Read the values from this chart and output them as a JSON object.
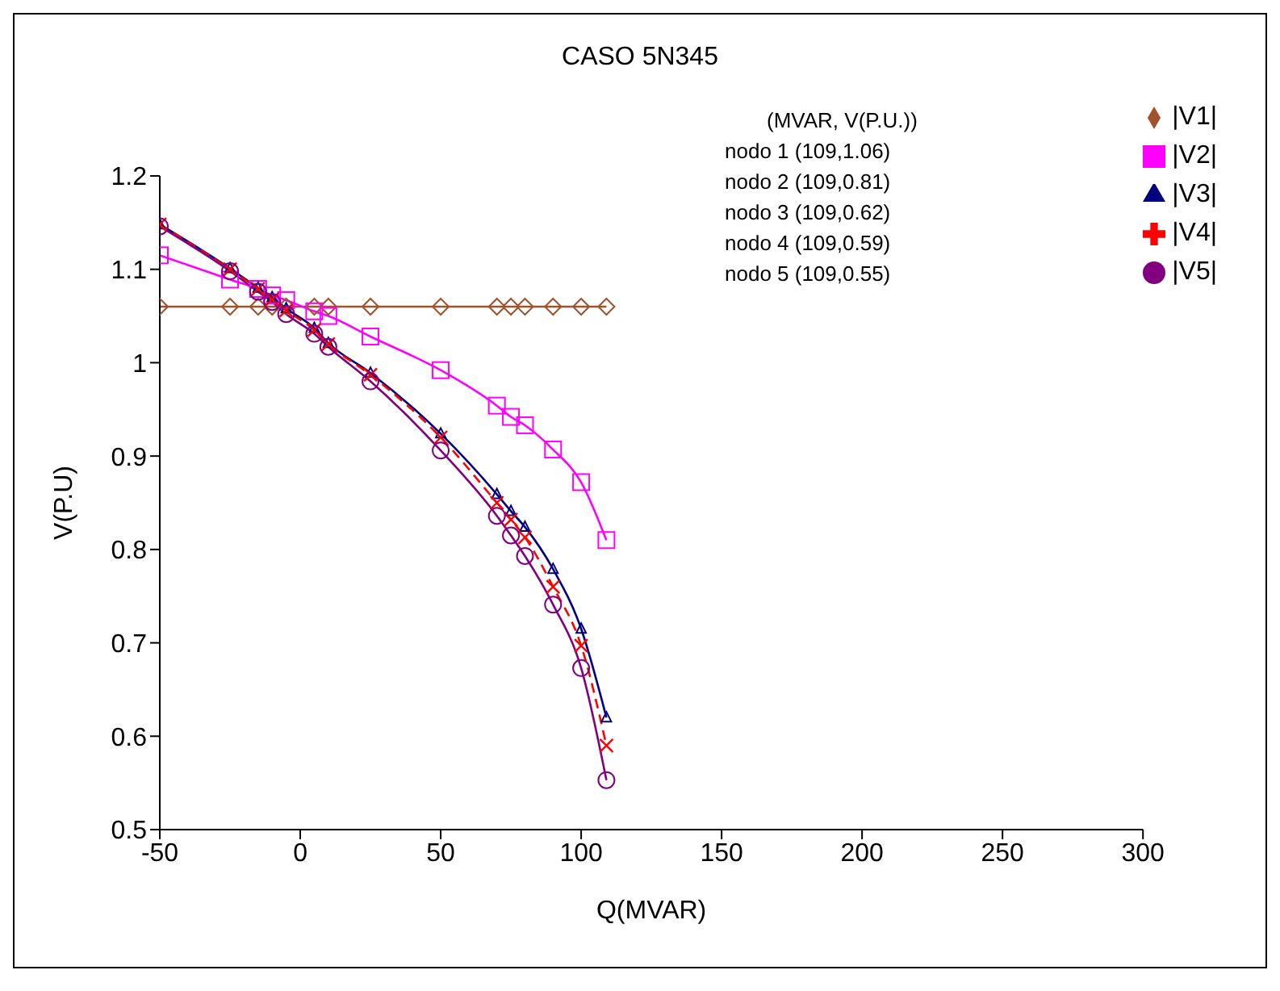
{
  "chart_data": {
    "type": "line",
    "title": "CASO 5N345",
    "xlabel": "Q(MVAR)",
    "ylabel": "V(P.U)",
    "x": [
      -50,
      -25,
      -15,
      -10,
      -5,
      5,
      10,
      25,
      50,
      70,
      75,
      80,
      90,
      100,
      109
    ],
    "xlim": [
      -50,
      300
    ],
    "xticks": [
      -50,
      0,
      50,
      100,
      150,
      200,
      250,
      300
    ],
    "ylim": [
      0.5,
      1.2
    ],
    "yticks": [
      0.5,
      0.6,
      0.7,
      0.8,
      0.9,
      1,
      1.1,
      1.2
    ],
    "grid": false,
    "legend": "top right",
    "annotations": [
      "(MVAR, V(P.U.))",
      "nodo 1 (109,1.06)",
      "nodo 2 (109,0.81)",
      "nodo 3 (109,0.62)",
      "nodo 4 (109,0.59)",
      "nodo 5 (109,0.55)"
    ],
    "series": [
      {
        "name": "|V1|",
        "color": "#a0522d",
        "marker": "diamond",
        "line_style": "solid",
        "values": [
          1.06,
          1.06,
          1.06,
          1.06,
          1.06,
          1.06,
          1.06,
          1.06,
          1.06,
          1.06,
          1.06,
          1.06,
          1.06,
          1.06,
          1.06
        ]
      },
      {
        "name": "|V2|",
        "color": "#ff00ff",
        "marker": "square",
        "line_style": "solid",
        "values": [
          1.115,
          1.089,
          1.079,
          1.072,
          1.067,
          1.055,
          1.05,
          1.028,
          0.992,
          0.954,
          0.942,
          0.933,
          0.907,
          0.872,
          0.81
        ]
      },
      {
        "name": "|V3|",
        "color": "#000080",
        "marker": "triangle",
        "line_style": "solid",
        "values": [
          1.148,
          1.101,
          1.08,
          1.07,
          1.058,
          1.037,
          1.021,
          0.989,
          0.924,
          0.859,
          0.841,
          0.824,
          0.779,
          0.715,
          0.62
        ]
      },
      {
        "name": "|V4|",
        "color": "#ff0000",
        "marker": "cross",
        "line_style": "dashed",
        "values": [
          1.148,
          1.1,
          1.079,
          1.068,
          1.056,
          1.035,
          1.02,
          0.987,
          0.92,
          0.85,
          0.832,
          0.813,
          0.76,
          0.697,
          0.59
        ]
      },
      {
        "name": "|V5|",
        "color": "#800080",
        "marker": "circle",
        "line_style": "solid",
        "values": [
          1.146,
          1.098,
          1.076,
          1.065,
          1.052,
          1.031,
          1.017,
          0.98,
          0.906,
          0.836,
          0.815,
          0.793,
          0.741,
          0.673,
          0.553
        ]
      }
    ]
  }
}
